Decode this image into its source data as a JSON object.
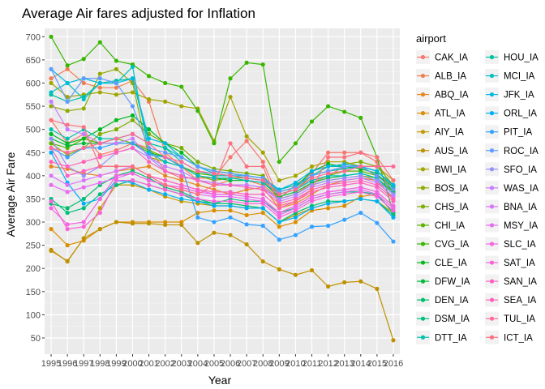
{
  "chart_data": {
    "type": "line",
    "title": "Average Air fares adjusted for Inflation",
    "xlabel": "Year",
    "ylabel": "Average Air Fare",
    "x": [
      1995,
      1996,
      1997,
      1998,
      1999,
      2000,
      2001,
      2002,
      2003,
      2004,
      2005,
      2006,
      2007,
      2008,
      2009,
      2010,
      2011,
      2012,
      2013,
      2014,
      2015,
      2016
    ],
    "xlim": [
      1994.6,
      2016.4
    ],
    "ylim": [
      15,
      718
    ],
    "yticks": [
      50,
      100,
      150,
      200,
      250,
      300,
      350,
      400,
      450,
      500,
      550,
      600,
      650,
      700
    ],
    "grid": true,
    "legend": {
      "title": "airport",
      "placement": "right",
      "columns": 2
    },
    "series": [
      {
        "name": "CAK_IA",
        "color": "#F8766D",
        "values": [
          520,
          470,
          490,
          445,
          455,
          470,
          460,
          410,
          395,
          395,
          395,
          440,
          475,
          430,
          350,
          380,
          405,
          450,
          450,
          450,
          430,
          370
        ]
      },
      {
        "name": "ALB_IA",
        "color": "#F27D53",
        "values": [
          610,
          630,
          600,
          590,
          590,
          605,
          560,
          450,
          420,
          390,
          380,
          390,
          390,
          380,
          350,
          360,
          385,
          400,
          420,
          420,
          400,
          380
        ]
      },
      {
        "name": "ABQ_IA",
        "color": "#E7851E",
        "values": [
          420,
          415,
          405,
          400,
          410,
          415,
          420,
          400,
          390,
          380,
          370,
          360,
          370,
          375,
          330,
          340,
          360,
          380,
          390,
          395,
          390,
          350
        ]
      },
      {
        "name": "ATL_IA",
        "color": "#DC8D00",
        "values": [
          285,
          250,
          260,
          285,
          300,
          300,
          300,
          300,
          300,
          320,
          325,
          325,
          315,
          320,
          290,
          300,
          325,
          330,
          335,
          355,
          360,
          320
        ]
      },
      {
        "name": "AIY_IA",
        "color": "#C49A00",
        "values": [
          238,
          216,
          265,
          330,
          380,
          380,
          370,
          355,
          345,
          340,
          335,
          335,
          330,
          330,
          300,
          315,
          330,
          340,
          345,
          350,
          345,
          320
        ]
      },
      {
        "name": "AUS_IA",
        "color": "#BF9000",
        "values": [
          240,
          215,
          265,
          285,
          300,
          297,
          297,
          294,
          294,
          255,
          277,
          272,
          252,
          215,
          198,
          186,
          196,
          161,
          170,
          172,
          156,
          45
        ]
      },
      {
        "name": "BWI_IA",
        "color": "#A3A500",
        "values": [
          600,
          570,
          575,
          580,
          575,
          580,
          565,
          560,
          550,
          545,
          475,
          570,
          485,
          450,
          390,
          400,
          420,
          430,
          430,
          420,
          420,
          390
        ]
      },
      {
        "name": "BOS_IA",
        "color": "#8FAA00",
        "values": [
          550,
          540,
          545,
          620,
          630,
          600,
          440,
          430,
          420,
          400,
          390,
          395,
          395,
          390,
          350,
          360,
          380,
          390,
          395,
          400,
          395,
          365
        ]
      },
      {
        "name": "CHS_IA",
        "color": "#7CAE00",
        "values": [
          470,
          445,
          460,
          490,
          500,
          520,
          490,
          470,
          460,
          430,
          415,
          410,
          405,
          400,
          360,
          370,
          400,
          420,
          425,
          430,
          420,
          380
        ]
      },
      {
        "name": "CHI_IA",
        "color": "#5BB300",
        "values": [
          470,
          460,
          480,
          470,
          480,
          470,
          455,
          440,
          420,
          405,
          400,
          400,
          395,
          390,
          360,
          370,
          390,
          400,
          410,
          410,
          400,
          375
        ]
      },
      {
        "name": "CVG_IA",
        "color": "#39B600",
        "values": [
          700,
          638,
          652,
          688,
          648,
          640,
          615,
          600,
          592,
          540,
          470,
          610,
          644,
          640,
          430,
          470,
          517,
          550,
          538,
          525,
          440,
          320
        ]
      },
      {
        "name": "CLE_IA",
        "color": "#00B81F",
        "values": [
          490,
          470,
          480,
          500,
          520,
          530,
          500,
          470,
          450,
          420,
          410,
          405,
          400,
          395,
          365,
          375,
          410,
          425,
          420,
          415,
          405,
          365
        ]
      },
      {
        "name": "DFW_IA",
        "color": "#00BA38",
        "values": [
          480,
          465,
          470,
          470,
          470,
          470,
          450,
          440,
          420,
          400,
          395,
          390,
          390,
          385,
          355,
          365,
          385,
          395,
          400,
          405,
          395,
          360
        ]
      },
      {
        "name": "DEN_IA",
        "color": "#00BE6C",
        "values": [
          340,
          330,
          350,
          380,
          400,
          410,
          395,
          375,
          365,
          350,
          340,
          340,
          335,
          330,
          300,
          320,
          335,
          345,
          345,
          350,
          345,
          315
        ]
      },
      {
        "name": "DSM_IA",
        "color": "#00BF7D",
        "values": [
          350,
          320,
          330,
          360,
          380,
          390,
          380,
          370,
          360,
          345,
          340,
          350,
          345,
          345,
          320,
          330,
          350,
          360,
          365,
          365,
          360,
          320
        ]
      },
      {
        "name": "DTT_IA",
        "color": "#00C0AF",
        "values": [
          500,
          480,
          500,
          480,
          480,
          490,
          470,
          460,
          430,
          410,
          400,
          400,
          395,
          390,
          370,
          380,
          400,
          420,
          420,
          420,
          410,
          375
        ]
      },
      {
        "name": "HOU_IA",
        "color": "#00C1A3",
        "values": [
          575,
          560,
          570,
          600,
          605,
          610,
          470,
          460,
          440,
          420,
          410,
          405,
          400,
          395,
          370,
          380,
          400,
          410,
          415,
          420,
          410,
          380
        ]
      },
      {
        "name": "MCI_IA",
        "color": "#00BFC4",
        "values": [
          580,
          600,
          565,
          600,
          600,
          635,
          450,
          430,
          420,
          400,
          395,
          395,
          390,
          385,
          360,
          370,
          390,
          400,
          400,
          405,
          395,
          360
        ]
      },
      {
        "name": "JFK_IA",
        "color": "#00B9E3",
        "values": [
          630,
          600,
          610,
          600,
          600,
          610,
          480,
          470,
          440,
          420,
          405,
          400,
          400,
          395,
          370,
          385,
          410,
          420,
          425,
          420,
          410,
          380
        ]
      },
      {
        "name": "ORL_IA",
        "color": "#00B0F6",
        "values": [
          450,
          385,
          340,
          350,
          390,
          385,
          370,
          360,
          350,
          345,
          335,
          335,
          330,
          330,
          300,
          310,
          330,
          340,
          345,
          350,
          345,
          310
        ]
      },
      {
        "name": "PIT_IA",
        "color": "#35A2FF",
        "values": [
          460,
          440,
          460,
          460,
          470,
          470,
          445,
          440,
          420,
          310,
          300,
          310,
          295,
          292,
          262,
          272,
          290,
          292,
          305,
          320,
          298,
          258
        ]
      },
      {
        "name": "ROC_IA",
        "color": "#619CFF",
        "values": [
          630,
          560,
          610,
          610,
          600,
          550,
          460,
          450,
          440,
          420,
          410,
          405,
          400,
          395,
          365,
          375,
          400,
          410,
          420,
          420,
          400,
          370
        ]
      },
      {
        "name": "SFO_IA",
        "color": "#9590FF",
        "values": [
          480,
          420,
          400,
          420,
          450,
          460,
          440,
          410,
          400,
          390,
          380,
          380,
          380,
          375,
          350,
          360,
          380,
          390,
          395,
          400,
          390,
          360
        ]
      },
      {
        "name": "WAS_IA",
        "color": "#C77CFF",
        "values": [
          560,
          500,
          490,
          470,
          470,
          480,
          440,
          420,
          410,
          390,
          385,
          380,
          380,
          375,
          345,
          355,
          375,
          385,
          390,
          395,
          385,
          355
        ]
      },
      {
        "name": "BNA_IA",
        "color": "#DB72FB",
        "values": [
          400,
          380,
          390,
          400,
          410,
          420,
          400,
          390,
          380,
          370,
          360,
          360,
          355,
          350,
          320,
          335,
          355,
          365,
          370,
          375,
          365,
          335
        ]
      },
      {
        "name": "MSY_IA",
        "color": "#E76BF3",
        "values": [
          380,
          365,
          375,
          385,
          395,
          405,
          390,
          380,
          370,
          360,
          355,
          355,
          350,
          345,
          315,
          330,
          350,
          360,
          365,
          370,
          360,
          330
        ]
      },
      {
        "name": "SLC_IA",
        "color": "#F564E3",
        "values": [
          330,
          295,
          300,
          350,
          400,
          405,
          390,
          380,
          375,
          365,
          360,
          360,
          355,
          350,
          320,
          335,
          355,
          365,
          370,
          375,
          365,
          335
        ]
      },
      {
        "name": "SAT_IA",
        "color": "#FA62DB",
        "values": [
          345,
          285,
          290,
          320,
          390,
          390,
          380,
          370,
          360,
          350,
          345,
          345,
          340,
          340,
          310,
          325,
          345,
          355,
          360,
          365,
          355,
          325
        ]
      },
      {
        "name": "SAN_IA",
        "color": "#FF61C3",
        "values": [
          460,
          400,
          410,
          420,
          420,
          420,
          400,
          390,
          380,
          370,
          365,
          365,
          360,
          360,
          330,
          345,
          365,
          375,
          380,
          385,
          375,
          345
        ]
      },
      {
        "name": "SEA_IA",
        "color": "#FF62BC",
        "values": [
          430,
          420,
          430,
          440,
          450,
          460,
          430,
          410,
          400,
          390,
          380,
          380,
          375,
          370,
          340,
          350,
          370,
          380,
          385,
          390,
          380,
          350
        ]
      },
      {
        "name": "TUL_IA",
        "color": "#FF6A98",
        "values": [
          460,
          450,
          460,
          470,
          480,
          490,
          470,
          440,
          430,
          410,
          405,
          400,
          395,
          390,
          360,
          370,
          395,
          405,
          410,
          420,
          420,
          420
        ]
      },
      {
        "name": "ICT_IA",
        "color": "#FC717F",
        "values": [
          520,
          510,
          505,
          420,
          420,
          420,
          400,
          380,
          370,
          360,
          380,
          470,
          420,
          420,
          335,
          345,
          370,
          440,
          440,
          450,
          440,
          390
        ]
      }
    ]
  }
}
